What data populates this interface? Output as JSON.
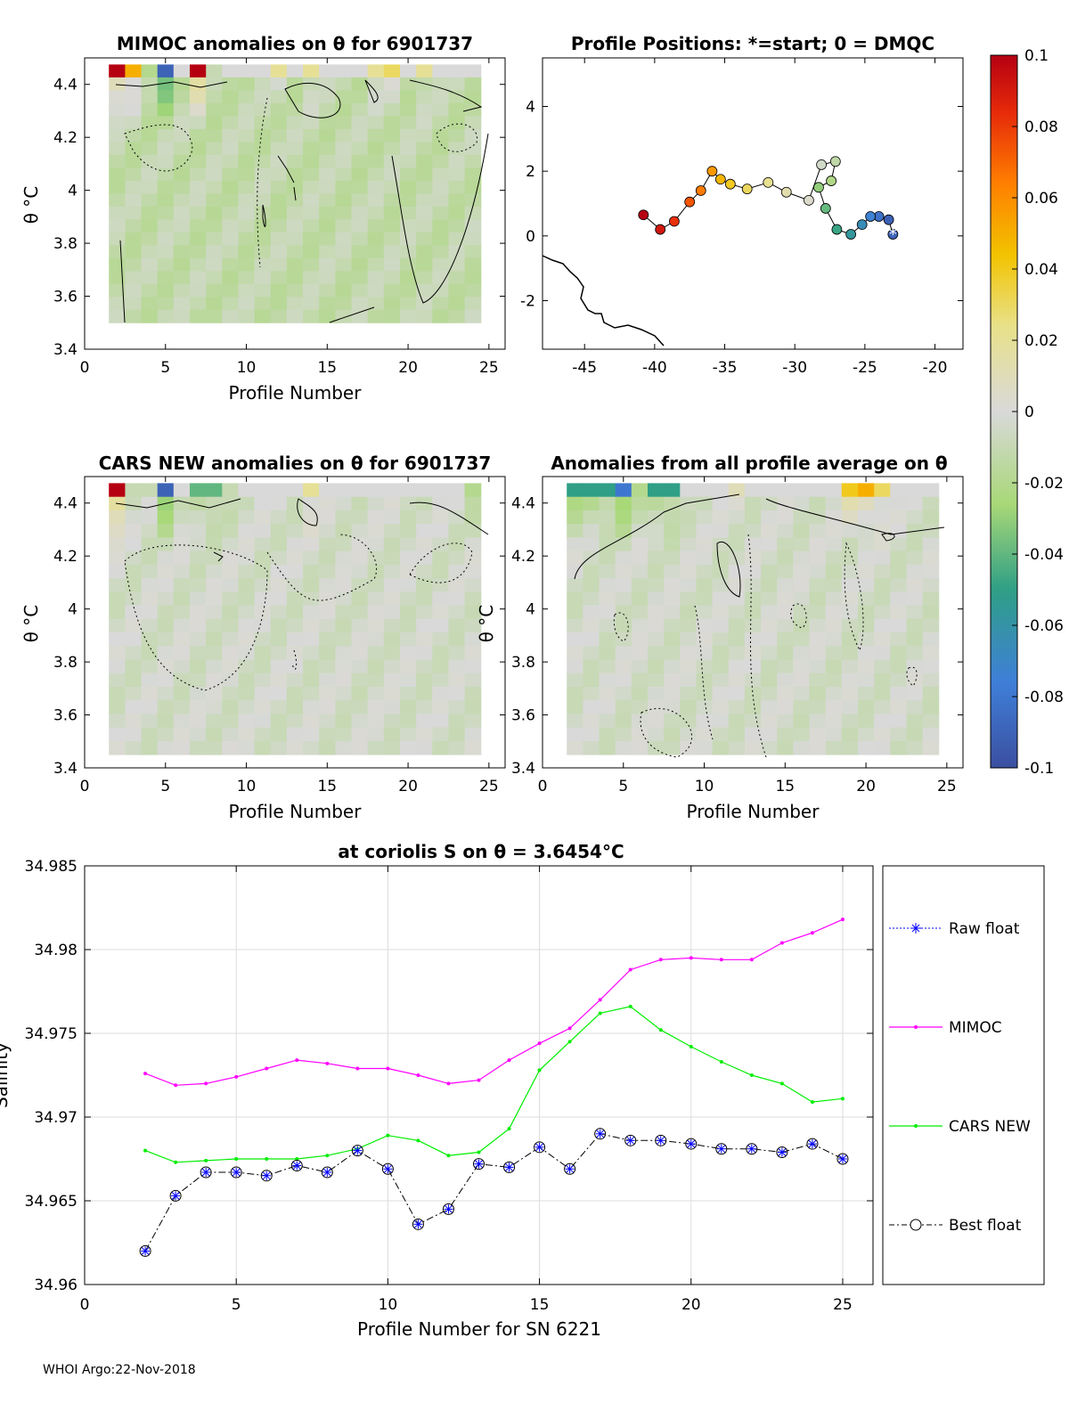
{
  "footer": "WHOI Argo:22-Nov-2018",
  "colorbar": {
    "ticks": [
      "0.1",
      "0.08",
      "0.06",
      "0.04",
      "0.02",
      "0",
      "-0.02",
      "-0.04",
      "-0.06",
      "-0.08",
      "-0.1"
    ],
    "range": [
      -0.1,
      0.1
    ]
  },
  "chart_data": [
    {
      "id": "mimoc",
      "type": "heatmap",
      "title": "MIMOC anomalies on θ  for 6901737",
      "xlabel": "Profile Number",
      "ylabel": "θ °C",
      "xlim": [
        0,
        26
      ],
      "ylim": [
        3.4,
        4.5
      ],
      "xticks": [
        "0",
        "5",
        "10",
        "15",
        "20",
        "25"
      ],
      "yticks": [
        "3.4",
        "3.6",
        "3.8",
        "4",
        "4.2",
        "4.4"
      ],
      "top_row_anomalies": [
        0.1,
        0.05,
        -0.02,
        -0.09,
        0.0,
        0.1,
        -0.01,
        0.0,
        0.0,
        0.0,
        0.02,
        0.0,
        0.02,
        0.0,
        0.0,
        0.0,
        0.02,
        0.03,
        0.0,
        0.02,
        0.0,
        0.0,
        0.0
      ]
    },
    {
      "id": "positions",
      "type": "scatter",
      "title": "Profile Positions: *=start; 0 = DMQC",
      "xlim": [
        -48,
        -18
      ],
      "ylim": [
        -3.5,
        5.5
      ],
      "xticks": [
        "-45",
        "-40",
        "-35",
        "-30",
        "-25",
        "-20"
      ],
      "yticks": [
        "-2",
        "0",
        "2",
        "4"
      ],
      "lon": [
        -23.0,
        -23.3,
        -24.0,
        -24.6,
        -25.2,
        -26.0,
        -27.0,
        -27.8,
        -28.3,
        -27.4,
        -27.1,
        -28.1,
        -29.0,
        -30.6,
        -31.9,
        -33.4,
        -34.6,
        -35.3,
        -35.9,
        -36.7,
        -37.5,
        -38.6,
        -39.6,
        -40.8
      ],
      "lat": [
        0.05,
        0.5,
        0.6,
        0.6,
        0.35,
        0.05,
        0.2,
        0.85,
        1.5,
        1.7,
        2.3,
        2.2,
        1.1,
        1.35,
        1.65,
        1.45,
        1.6,
        1.75,
        2.0,
        1.4,
        1.05,
        0.45,
        0.2,
        0.65
      ]
    },
    {
      "id": "cars",
      "type": "heatmap",
      "title": "CARS NEW anomalies on θ for 6901737",
      "xlabel": "Profile Number",
      "ylabel": "θ °C",
      "xlim": [
        0,
        26
      ],
      "ylim": [
        3.4,
        4.5
      ],
      "xticks": [
        "0",
        "5",
        "10",
        "15",
        "20",
        "25"
      ],
      "yticks": [
        "3.4",
        "3.6",
        "3.8",
        "4",
        "4.2",
        "4.4"
      ],
      "top_row_anomalies": [
        0.1,
        -0.01,
        -0.01,
        -0.09,
        0.0,
        -0.04,
        -0.04,
        -0.01,
        0.0,
        0.0,
        0.0,
        0.0,
        0.02,
        0.0,
        0.0,
        0.0,
        0.0,
        0.0,
        0.0,
        0.0,
        0.0,
        0.0,
        -0.02
      ]
    },
    {
      "id": "avg",
      "type": "heatmap",
      "title": "Anomalies from all profile average on θ",
      "xlabel": "Profile Number",
      "ylabel": "θ °C",
      "xlim": [
        0,
        26
      ],
      "ylim": [
        3.4,
        4.5
      ],
      "xticks": [
        "0",
        "5",
        "10",
        "15",
        "20",
        "25"
      ],
      "yticks": [
        "3.4",
        "3.6",
        "3.8",
        "4",
        "4.2",
        "4.4"
      ],
      "top_row_anomalies": [
        -0.05,
        -0.05,
        -0.05,
        -0.08,
        -0.02,
        -0.05,
        -0.05,
        0.0,
        0.0,
        0.0,
        0.01,
        0.0,
        0.0,
        0.0,
        0.0,
        0.0,
        0.0,
        0.04,
        0.05,
        0.03,
        0.0,
        0.0,
        0.0
      ]
    },
    {
      "id": "salinity",
      "type": "line",
      "title": "at coriolis S on θ = 3.6454°C",
      "xlabel": "Profile Number for SN 6221",
      "ylabel": "Salinity",
      "xlim": [
        0,
        26
      ],
      "ylim": [
        34.96,
        34.985
      ],
      "xticks": [
        "0",
        "5",
        "10",
        "15",
        "20",
        "25"
      ],
      "yticks": [
        "34.96",
        "34.965",
        "34.97",
        "34.975",
        "34.98",
        "34.985"
      ],
      "x": [
        2,
        3,
        4,
        5,
        6,
        7,
        8,
        9,
        10,
        11,
        12,
        13,
        14,
        15,
        16,
        17,
        18,
        19,
        20,
        21,
        22,
        23,
        24,
        25
      ],
      "series": [
        {
          "name": "Raw float",
          "color": "#0000ff",
          "values": [
            34.962,
            34.9653,
            34.9667,
            34.9667,
            34.9665,
            34.9671,
            34.9667,
            34.968,
            34.9669,
            34.9636,
            34.9645,
            34.9672,
            34.967,
            34.9682,
            34.9669,
            34.969,
            34.9686,
            34.9686,
            34.9684,
            34.9681,
            34.9681,
            34.9679,
            34.9684,
            34.9675
          ]
        },
        {
          "name": "MIMOC",
          "color": "#ff00ff",
          "values": [
            34.9726,
            34.9719,
            34.972,
            34.9724,
            34.9729,
            34.9734,
            34.9732,
            34.9729,
            34.9729,
            34.9725,
            34.972,
            34.9722,
            34.9734,
            34.9744,
            34.9753,
            34.977,
            34.9788,
            34.9794,
            34.9795,
            34.9794,
            34.9794,
            34.9804,
            34.981,
            34.9818
          ]
        },
        {
          "name": "CARS NEW",
          "color": "#00ee00",
          "values": [
            34.968,
            34.9673,
            34.9674,
            34.9675,
            34.9675,
            34.9675,
            34.9677,
            34.9681,
            34.9689,
            34.9686,
            34.9677,
            34.9679,
            34.9693,
            34.9728,
            34.9745,
            34.9762,
            34.9766,
            34.9752,
            34.9742,
            34.9733,
            34.9725,
            34.972,
            34.9709,
            34.9711
          ]
        },
        {
          "name": "Best float",
          "color": "#000000",
          "values": [
            34.962,
            34.9653,
            34.9667,
            34.9667,
            34.9665,
            34.9671,
            34.9667,
            34.968,
            34.9669,
            34.9636,
            34.9645,
            34.9672,
            34.967,
            34.9682,
            34.9669,
            34.969,
            34.9686,
            34.9686,
            34.9684,
            34.9681,
            34.9681,
            34.9679,
            34.9684,
            34.9675
          ]
        }
      ]
    }
  ]
}
